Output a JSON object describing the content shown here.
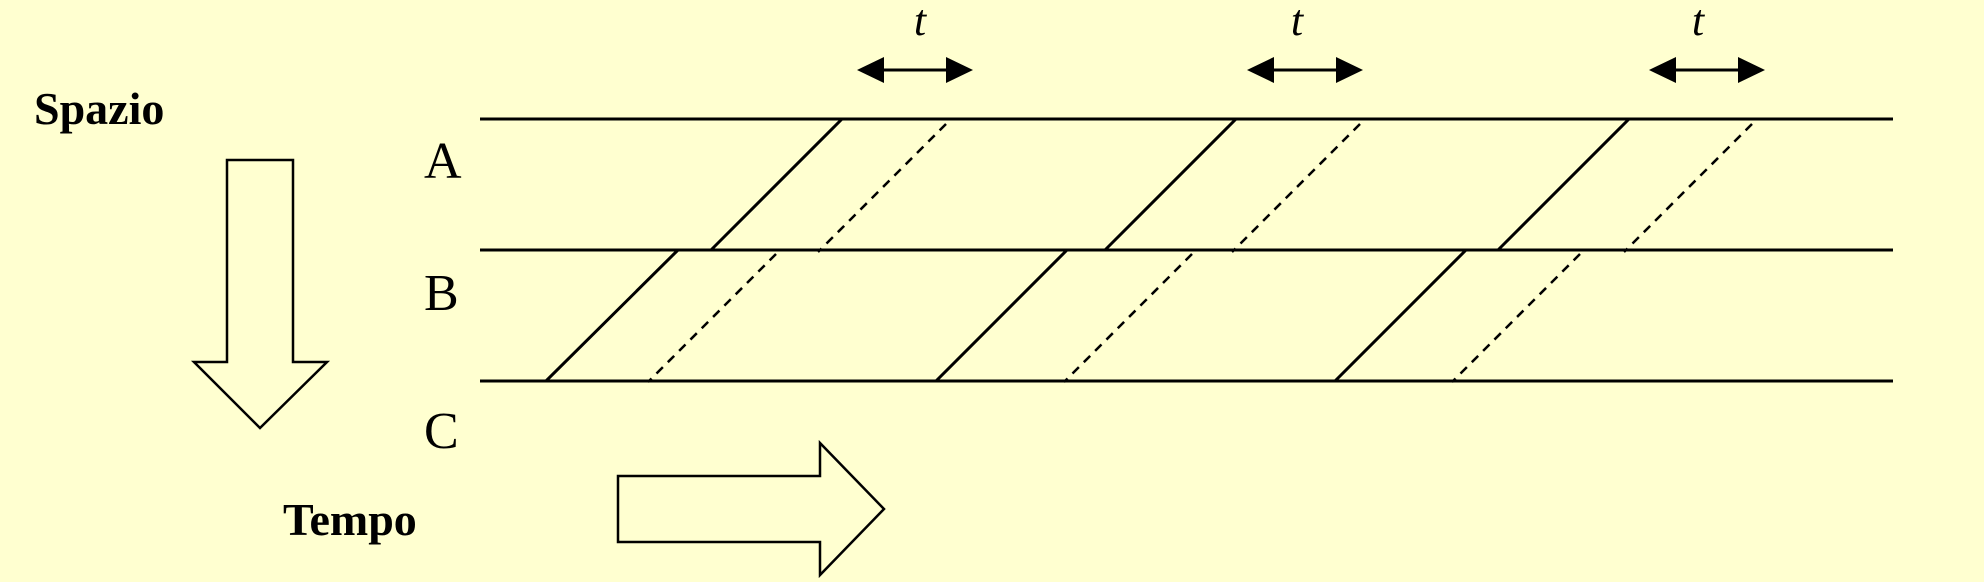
{
  "labels": {
    "space": "Spazio",
    "time": "Tempo"
  },
  "rows": [
    "A",
    "B",
    "C"
  ],
  "interval_label": "t",
  "colors": {
    "background": "#ffffd0",
    "stroke": "#000000"
  }
}
